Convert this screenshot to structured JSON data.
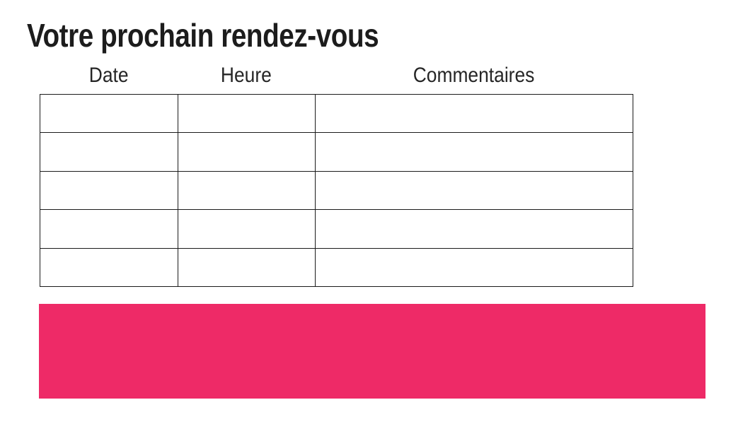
{
  "page": {
    "title": "Votre prochain rendez-vous"
  },
  "appointments_table": {
    "headers": [
      "Date",
      "Heure",
      "Commentaires"
    ],
    "rows": [
      [
        "",
        "",
        ""
      ],
      [
        "",
        "",
        ""
      ],
      [
        "",
        "",
        ""
      ],
      [
        "",
        "",
        ""
      ],
      [
        "",
        "",
        ""
      ]
    ]
  },
  "colors": {
    "accent_pink": "#EE2A67",
    "table_border": "#1B1B1B",
    "title_text": "#1C1C1C"
  }
}
